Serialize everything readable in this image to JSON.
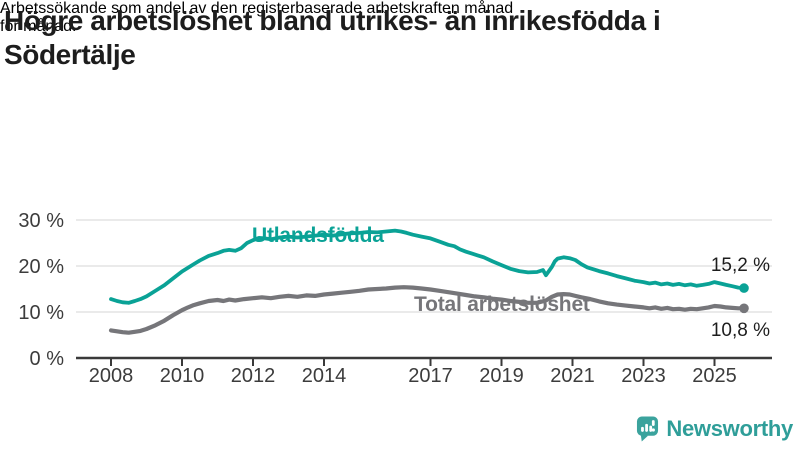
{
  "header": {
    "title_lines": [
      "Högre arbetslöshet bland utrikes- än inrikesfödda i",
      "Södertälje"
    ],
    "subtitle_lines": [
      "Arbetssökande som andel av den registerbaserade arbetskraften månad",
      "för månad."
    ]
  },
  "chart_data": {
    "type": "line",
    "title": "Högre arbetslöshet bland utrikes- än inrikesfödda i Södertälje",
    "subtitle": "Arbetssökande som andel av den registerbaserade arbetskraften månad för månad.",
    "xlabel": "",
    "ylabel": "",
    "grid": true,
    "legend_position": "inline-labels-on-lines",
    "x_range": [
      2007.5,
      2026.2
    ],
    "ylim": [
      0,
      32
    ],
    "y_axis": {
      "unit": "%",
      "ticks": [
        {
          "value": 30,
          "label": "30 %"
        },
        {
          "value": 20,
          "label": "20 %"
        },
        {
          "value": 10,
          "label": "10 %"
        },
        {
          "value": 0,
          "label": "0 %"
        }
      ]
    },
    "x_axis": {
      "ticks": [
        {
          "year": 2008,
          "label": "2008"
        },
        {
          "year": 2010,
          "label": "2010"
        },
        {
          "year": 2012,
          "label": "2012"
        },
        {
          "year": 2014,
          "label": "2014"
        },
        {
          "year": 2017,
          "label": "2017"
        },
        {
          "year": 2019,
          "label": "2019"
        },
        {
          "year": 2021,
          "label": "2021"
        },
        {
          "year": 2023,
          "label": "2023"
        },
        {
          "year": 2025,
          "label": "2025"
        }
      ]
    },
    "series": [
      {
        "name": "Utlandsfödda",
        "color": "#0aa296",
        "stroke_width": 3.8,
        "end_label": "15,2 %",
        "end_value": 15.2,
        "points": [
          [
            2008.0,
            12.8
          ],
          [
            2008.17,
            12.4
          ],
          [
            2008.33,
            12.1
          ],
          [
            2008.5,
            12.0
          ],
          [
            2008.67,
            12.4
          ],
          [
            2008.83,
            12.8
          ],
          [
            2009.0,
            13.4
          ],
          [
            2009.25,
            14.6
          ],
          [
            2009.5,
            15.8
          ],
          [
            2009.75,
            17.3
          ],
          [
            2010.0,
            18.8
          ],
          [
            2010.17,
            19.6
          ],
          [
            2010.33,
            20.4
          ],
          [
            2010.5,
            21.2
          ],
          [
            2010.75,
            22.2
          ],
          [
            2011.0,
            22.8
          ],
          [
            2011.17,
            23.3
          ],
          [
            2011.33,
            23.5
          ],
          [
            2011.5,
            23.3
          ],
          [
            2011.67,
            23.9
          ],
          [
            2011.83,
            25.0
          ],
          [
            2012.0,
            25.6
          ],
          [
            2012.17,
            26.1
          ],
          [
            2012.33,
            26.0
          ],
          [
            2012.5,
            25.8
          ],
          [
            2012.75,
            26.2
          ],
          [
            2013.0,
            26.4
          ],
          [
            2013.25,
            26.2
          ],
          [
            2013.5,
            26.4
          ],
          [
            2013.75,
            26.6
          ],
          [
            2014.0,
            26.8
          ],
          [
            2014.25,
            26.6
          ],
          [
            2014.5,
            26.9
          ],
          [
            2014.75,
            27.1
          ],
          [
            2015.0,
            27.2
          ],
          [
            2015.25,
            27.4
          ],
          [
            2015.5,
            27.3
          ],
          [
            2015.75,
            27.5
          ],
          [
            2016.0,
            27.7
          ],
          [
            2016.17,
            27.5
          ],
          [
            2016.33,
            27.2
          ],
          [
            2016.5,
            26.8
          ],
          [
            2016.75,
            26.4
          ],
          [
            2017.0,
            26.0
          ],
          [
            2017.25,
            25.3
          ],
          [
            2017.5,
            24.6
          ],
          [
            2017.67,
            24.3
          ],
          [
            2017.83,
            23.6
          ],
          [
            2018.0,
            23.1
          ],
          [
            2018.17,
            22.7
          ],
          [
            2018.33,
            22.3
          ],
          [
            2018.5,
            21.9
          ],
          [
            2018.75,
            21.0
          ],
          [
            2019.0,
            20.2
          ],
          [
            2019.25,
            19.4
          ],
          [
            2019.5,
            18.9
          ],
          [
            2019.75,
            18.6
          ],
          [
            2020.0,
            18.7
          ],
          [
            2020.17,
            19.1
          ],
          [
            2020.25,
            18.0
          ],
          [
            2020.42,
            19.8
          ],
          [
            2020.5,
            21.0
          ],
          [
            2020.58,
            21.6
          ],
          [
            2020.75,
            21.9
          ],
          [
            2020.92,
            21.7
          ],
          [
            2021.08,
            21.3
          ],
          [
            2021.25,
            20.4
          ],
          [
            2021.42,
            19.7
          ],
          [
            2021.58,
            19.3
          ],
          [
            2021.75,
            18.9
          ],
          [
            2022.0,
            18.4
          ],
          [
            2022.25,
            17.8
          ],
          [
            2022.5,
            17.3
          ],
          [
            2022.75,
            16.8
          ],
          [
            2023.0,
            16.5
          ],
          [
            2023.17,
            16.2
          ],
          [
            2023.33,
            16.4
          ],
          [
            2023.5,
            16.0
          ],
          [
            2023.67,
            16.2
          ],
          [
            2023.83,
            15.9
          ],
          [
            2024.0,
            16.1
          ],
          [
            2024.17,
            15.8
          ],
          [
            2024.33,
            16.0
          ],
          [
            2024.5,
            15.7
          ],
          [
            2024.67,
            15.9
          ],
          [
            2024.83,
            16.1
          ],
          [
            2025.0,
            16.5
          ],
          [
            2025.17,
            16.2
          ],
          [
            2025.33,
            15.9
          ],
          [
            2025.5,
            15.6
          ],
          [
            2025.67,
            15.3
          ],
          [
            2025.83,
            15.2
          ]
        ]
      },
      {
        "name": "Total arbetslöshet",
        "color": "#76767a",
        "stroke_width": 4.2,
        "end_label": "10,8 %",
        "end_value": 10.8,
        "points": [
          [
            2008.0,
            6.0
          ],
          [
            2008.17,
            5.8
          ],
          [
            2008.33,
            5.6
          ],
          [
            2008.5,
            5.5
          ],
          [
            2008.67,
            5.7
          ],
          [
            2008.83,
            5.9
          ],
          [
            2009.0,
            6.3
          ],
          [
            2009.25,
            7.1
          ],
          [
            2009.5,
            8.1
          ],
          [
            2009.75,
            9.3
          ],
          [
            2010.0,
            10.4
          ],
          [
            2010.17,
            11.0
          ],
          [
            2010.33,
            11.5
          ],
          [
            2010.5,
            11.9
          ],
          [
            2010.75,
            12.4
          ],
          [
            2011.0,
            12.6
          ],
          [
            2011.17,
            12.4
          ],
          [
            2011.33,
            12.7
          ],
          [
            2011.5,
            12.5
          ],
          [
            2011.75,
            12.8
          ],
          [
            2012.0,
            13.0
          ],
          [
            2012.25,
            13.2
          ],
          [
            2012.5,
            13.0
          ],
          [
            2012.75,
            13.3
          ],
          [
            2013.0,
            13.5
          ],
          [
            2013.25,
            13.3
          ],
          [
            2013.5,
            13.6
          ],
          [
            2013.75,
            13.5
          ],
          [
            2014.0,
            13.8
          ],
          [
            2014.25,
            14.0
          ],
          [
            2014.5,
            14.2
          ],
          [
            2014.75,
            14.4
          ],
          [
            2015.0,
            14.6
          ],
          [
            2015.25,
            14.9
          ],
          [
            2015.5,
            15.0
          ],
          [
            2015.75,
            15.1
          ],
          [
            2016.0,
            15.3
          ],
          [
            2016.25,
            15.4
          ],
          [
            2016.5,
            15.3
          ],
          [
            2016.75,
            15.1
          ],
          [
            2017.0,
            14.9
          ],
          [
            2017.25,
            14.6
          ],
          [
            2017.5,
            14.3
          ],
          [
            2017.75,
            14.0
          ],
          [
            2018.0,
            13.7
          ],
          [
            2018.25,
            13.4
          ],
          [
            2018.5,
            13.2
          ],
          [
            2018.75,
            12.9
          ],
          [
            2019.0,
            12.7
          ],
          [
            2019.25,
            12.4
          ],
          [
            2019.5,
            12.2
          ],
          [
            2019.75,
            12.0
          ],
          [
            2020.0,
            12.0
          ],
          [
            2020.25,
            12.5
          ],
          [
            2020.42,
            13.3
          ],
          [
            2020.58,
            13.8
          ],
          [
            2020.75,
            13.9
          ],
          [
            2020.92,
            13.8
          ],
          [
            2021.08,
            13.5
          ],
          [
            2021.25,
            13.2
          ],
          [
            2021.5,
            12.8
          ],
          [
            2021.75,
            12.3
          ],
          [
            2022.0,
            11.9
          ],
          [
            2022.25,
            11.6
          ],
          [
            2022.5,
            11.4
          ],
          [
            2022.75,
            11.2
          ],
          [
            2023.0,
            11.0
          ],
          [
            2023.17,
            10.8
          ],
          [
            2023.33,
            11.0
          ],
          [
            2023.5,
            10.7
          ],
          [
            2023.67,
            10.9
          ],
          [
            2023.83,
            10.6
          ],
          [
            2024.0,
            10.7
          ],
          [
            2024.17,
            10.5
          ],
          [
            2024.33,
            10.7
          ],
          [
            2024.5,
            10.6
          ],
          [
            2024.67,
            10.8
          ],
          [
            2024.83,
            11.0
          ],
          [
            2025.0,
            11.3
          ],
          [
            2025.17,
            11.2
          ],
          [
            2025.33,
            11.0
          ],
          [
            2025.5,
            10.9
          ],
          [
            2025.67,
            10.8
          ],
          [
            2025.83,
            10.8
          ]
        ]
      }
    ]
  },
  "logo": {
    "text": "Newsworthy",
    "icon": "newsworthy-chart-bubble-icon",
    "icon_color": "#3ba39d",
    "text_color": "#2f9e99"
  },
  "colors": {
    "text_dark": "#1d1d1d",
    "axis": "#3a3a3a",
    "axis_text": "#3c3c3c",
    "gridline": "#e3e3e3",
    "series_foreign_born": "#0aa296",
    "series_total": "#76767a"
  }
}
